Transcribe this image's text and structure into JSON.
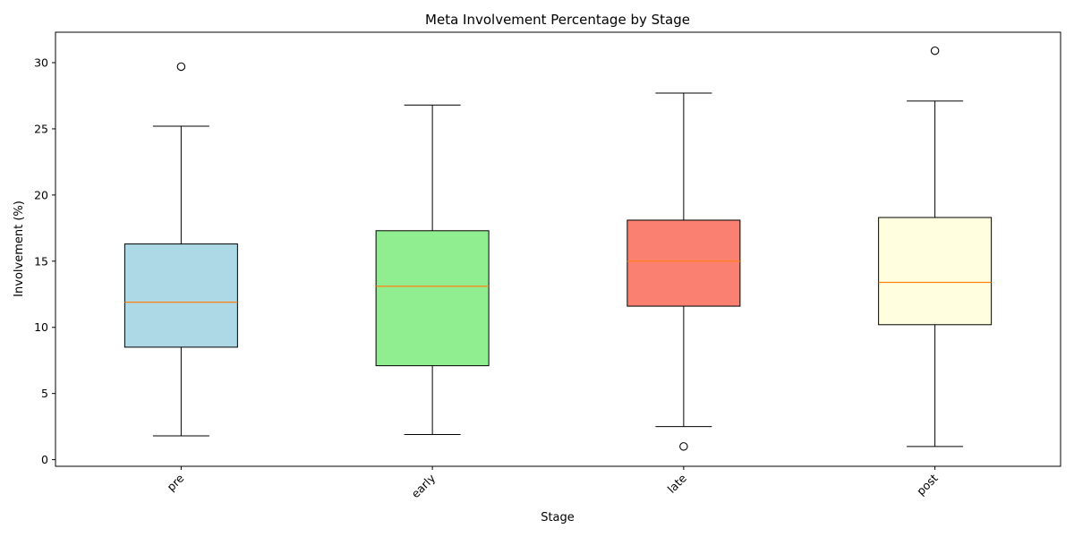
{
  "chart_data": {
    "type": "box",
    "title": "Meta Involvement Percentage by Stage",
    "xlabel": "Stage",
    "ylabel": "Involvement (%)",
    "ylim": [
      -0.5,
      32.3
    ],
    "yticks": [
      0,
      5,
      10,
      15,
      20,
      25,
      30
    ],
    "xtick_rotation_deg": -45,
    "grid": false,
    "categories": [
      "pre",
      "early",
      "late",
      "post"
    ],
    "median_color": "#ff7f0e",
    "series": [
      {
        "category": "pre",
        "whisker_low": 1.8,
        "q1": 8.5,
        "median": 11.9,
        "q3": 16.3,
        "whisker_high": 25.2,
        "outliers": [
          29.7
        ],
        "color": "#add8e6"
      },
      {
        "category": "early",
        "whisker_low": 1.9,
        "q1": 7.1,
        "median": 13.1,
        "q3": 17.3,
        "whisker_high": 26.8,
        "outliers": [],
        "color": "#90ee90"
      },
      {
        "category": "late",
        "whisker_low": 2.5,
        "q1": 11.6,
        "median": 15.0,
        "q3": 18.1,
        "whisker_high": 27.7,
        "outliers": [
          1.0
        ],
        "color": "#fa8072"
      },
      {
        "category": "post",
        "whisker_low": 1.0,
        "q1": 10.2,
        "median": 13.4,
        "q3": 18.3,
        "whisker_high": 27.1,
        "outliers": [
          30.9
        ],
        "color": "#ffffe0"
      }
    ]
  }
}
